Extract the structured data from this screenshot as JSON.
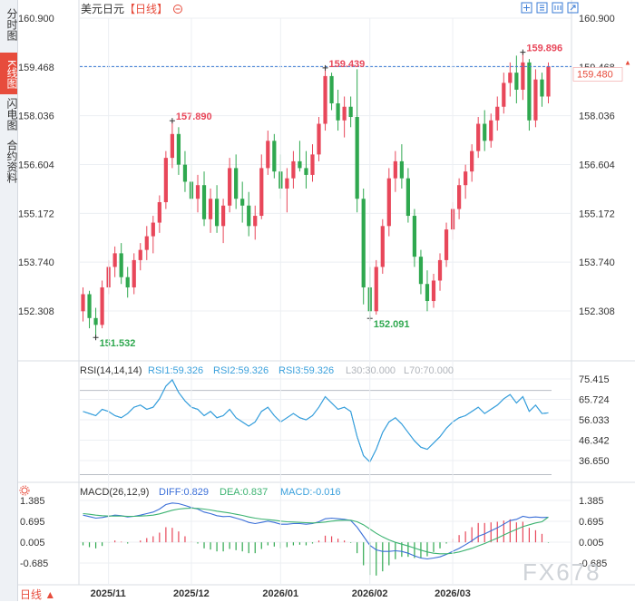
{
  "sidebar": {
    "tabs": [
      {
        "label": "分时图",
        "active": false
      },
      {
        "label": "K线图",
        "active": true
      },
      {
        "label": "闪电图",
        "active": false
      },
      {
        "label": "合约资料",
        "active": false
      }
    ]
  },
  "header": {
    "symbol": "美元日元",
    "period_tag": "【日线】",
    "icons": [
      "fullscreen-icon",
      "grid-icon",
      "calendar-icon",
      "export-icon"
    ]
  },
  "price_panel": {
    "right_ticks": [
      "160.900",
      "159.468",
      "158.036",
      "156.604",
      "155.172",
      "153.740",
      "152.308"
    ],
    "left_ticks": [
      "160.900",
      "159.468",
      "158.036",
      "156.604",
      "155.172",
      "153.740",
      "152.308"
    ],
    "current_price": "159.480",
    "annotations": [
      "157.890",
      "159.439",
      "159.896",
      "151.532",
      "152.091"
    ]
  },
  "rsi_panel": {
    "title": "RSI(14,14,14)",
    "rsi1": "RSI1:59.326",
    "rsi2": "RSI2:59.326",
    "rsi3": "RSI3:59.326",
    "l30": "L30:30.000",
    "l70": "L70:70.000",
    "ticks": [
      "75.415",
      "65.724",
      "56.033",
      "46.342",
      "36.650"
    ]
  },
  "macd_panel": {
    "title": "MACD(26,12,9)",
    "diff": "DIFF:0.829",
    "dea": "DEA:0.837",
    "macd": "MACD:-0.016",
    "ticks": [
      "1.385",
      "0.695",
      "0.005",
      "-0.685"
    ]
  },
  "x_axis": {
    "labels": [
      "2025/11",
      "2025/12",
      "2026/01",
      "2026/02",
      "2026/03"
    ]
  },
  "footer": {
    "period": "日线 ▲",
    "watermark": "FX678"
  },
  "colors": {
    "up": "#e8475a",
    "down": "#2fa84f",
    "rsi": "#3aa0dc",
    "macd_diff": "#3b6fd8",
    "macd_dea": "#3cb371",
    "accent": "#e74c3c",
    "grid": "#eceff3"
  },
  "chart_data": [
    {
      "type": "candlestick",
      "title": "美元日元【日线】",
      "ylim": [
        151.3,
        161.1
      ],
      "x": [
        "2025/11",
        "2025/12",
        "2026/01",
        "2026/02",
        "2026/03"
      ],
      "series": [
        {
          "values": [
            [
              152.3,
              153.0,
              152.0,
              152.8
            ],
            [
              152.8,
              152.9,
              151.8,
              152.1
            ],
            [
              152.1,
              152.4,
              151.53,
              151.9
            ],
            [
              151.9,
              153.2,
              151.8,
              153.0
            ],
            [
              153.0,
              153.8,
              152.8,
              153.6
            ],
            [
              153.6,
              154.2,
              153.3,
              154.0
            ],
            [
              154.0,
              154.3,
              153.1,
              153.3
            ],
            [
              153.3,
              153.6,
              152.7,
              153.0
            ],
            [
              153.0,
              154.0,
              152.8,
              153.8
            ],
            [
              153.8,
              154.3,
              153.5,
              154.1
            ],
            [
              154.1,
              154.8,
              153.8,
              154.5
            ],
            [
              154.5,
              155.1,
              154.0,
              154.9
            ],
            [
              154.9,
              155.7,
              154.6,
              155.5
            ],
            [
              155.5,
              157.0,
              155.3,
              156.8
            ],
            [
              156.8,
              157.89,
              156.5,
              157.5
            ],
            [
              157.5,
              157.7,
              156.3,
              156.6
            ],
            [
              156.6,
              157.0,
              155.8,
              156.1
            ],
            [
              156.1,
              156.6,
              155.3,
              155.6
            ],
            [
              155.6,
              156.3,
              155.2,
              156.0
            ],
            [
              156.0,
              156.4,
              154.8,
              155.0
            ],
            [
              155.0,
              155.9,
              154.6,
              155.6
            ],
            [
              155.6,
              156.0,
              154.6,
              154.8
            ],
            [
              154.8,
              155.6,
              154.3,
              155.4
            ],
            [
              155.4,
              156.8,
              155.2,
              156.5
            ],
            [
              156.5,
              156.9,
              155.3,
              155.6
            ],
            [
              155.6,
              156.1,
              154.9,
              155.4
            ],
            [
              155.4,
              155.8,
              154.5,
              154.8
            ],
            [
              154.8,
              155.4,
              154.4,
              155.1
            ],
            [
              155.1,
              156.9,
              155.0,
              156.5
            ],
            [
              156.5,
              157.6,
              156.3,
              157.3
            ],
            [
              157.3,
              157.5,
              156.2,
              156.4
            ],
            [
              156.4,
              156.9,
              155.6,
              155.9
            ],
            [
              155.9,
              156.5,
              155.2,
              156.2
            ],
            [
              156.2,
              157.0,
              155.9,
              156.7
            ],
            [
              156.7,
              157.3,
              156.4,
              156.5
            ],
            [
              156.5,
              157.0,
              155.9,
              156.3
            ],
            [
              156.3,
              157.2,
              156.1,
              156.9
            ],
            [
              156.9,
              158.0,
              156.7,
              157.8
            ],
            [
              157.8,
              159.44,
              157.6,
              159.2
            ],
            [
              159.2,
              159.3,
              158.2,
              158.4
            ],
            [
              158.4,
              158.8,
              157.6,
              157.9
            ],
            [
              157.9,
              158.6,
              157.4,
              158.3
            ],
            [
              158.3,
              158.6,
              157.7,
              158.0
            ],
            [
              158.0,
              159.4,
              155.2,
              155.6
            ],
            [
              155.6,
              155.9,
              152.5,
              153.0
            ],
            [
              153.0,
              153.6,
              152.09,
              152.3
            ],
            [
              152.3,
              153.8,
              152.2,
              153.6
            ],
            [
              153.6,
              155.0,
              153.4,
              154.8
            ],
            [
              154.8,
              156.5,
              154.5,
              156.2
            ],
            [
              156.2,
              157.0,
              155.8,
              156.7
            ],
            [
              156.7,
              157.2,
              155.9,
              156.2
            ],
            [
              156.2,
              156.5,
              154.9,
              155.1
            ],
            [
              155.1,
              155.3,
              153.6,
              153.9
            ],
            [
              153.9,
              154.1,
              152.8,
              153.1
            ],
            [
              153.1,
              153.5,
              152.3,
              152.6
            ],
            [
              152.6,
              153.4,
              152.4,
              153.2
            ],
            [
              153.2,
              154.0,
              152.9,
              153.8
            ],
            [
              153.8,
              154.9,
              153.6,
              154.7
            ],
            [
              154.7,
              155.5,
              154.4,
              155.3
            ],
            [
              155.3,
              156.2,
              155.0,
              156.0
            ],
            [
              156.0,
              156.6,
              155.6,
              156.4
            ],
            [
              156.4,
              157.2,
              156.1,
              157.0
            ],
            [
              157.0,
              158.0,
              156.8,
              157.8
            ],
            [
              157.8,
              158.2,
              157.0,
              157.3
            ],
            [
              157.3,
              158.1,
              157.1,
              157.9
            ],
            [
              157.9,
              158.6,
              157.6,
              158.3
            ],
            [
              158.3,
              159.3,
              158.1,
              159.0
            ],
            [
              159.0,
              159.6,
              158.6,
              159.3
            ],
            [
              159.3,
              159.8,
              158.4,
              158.8
            ],
            [
              158.8,
              159.9,
              158.5,
              159.6
            ],
            [
              159.6,
              159.7,
              157.6,
              157.9
            ],
            [
              157.9,
              159.4,
              157.7,
              159.1
            ],
            [
              159.1,
              159.3,
              158.3,
              158.6
            ],
            [
              158.6,
              159.6,
              158.4,
              159.48
            ]
          ]
        }
      ]
    },
    {
      "type": "line",
      "title": "RSI(14,14,14)",
      "ylim": [
        30,
        80
      ],
      "series": [
        {
          "name": "RSI1",
          "values": [
            60,
            59,
            58,
            61,
            60,
            58,
            57,
            59,
            62,
            63,
            61,
            62,
            66,
            72,
            75,
            69,
            65,
            62,
            61,
            58,
            60,
            57,
            58,
            61,
            57,
            55,
            53,
            55,
            60,
            62,
            58,
            55,
            57,
            59,
            57,
            56,
            58,
            62,
            67,
            64,
            61,
            62,
            60,
            48,
            39,
            36,
            42,
            50,
            55,
            57,
            54,
            50,
            46,
            43,
            42,
            45,
            48,
            52,
            55,
            57,
            58,
            60,
            62,
            59,
            61,
            63,
            66,
            68,
            64,
            67,
            60,
            63,
            59,
            59.3
          ]
        },
        {
          "name": "RSI2",
          "values": [
            60,
            59,
            58,
            61,
            60,
            58,
            57,
            59,
            62,
            63,
            61,
            62,
            66,
            72,
            75,
            69,
            65,
            62,
            61,
            58,
            60,
            57,
            58,
            61,
            57,
            55,
            53,
            55,
            60,
            62,
            58,
            55,
            57,
            59,
            57,
            56,
            58,
            62,
            67,
            64,
            61,
            62,
            60,
            48,
            39,
            36,
            42,
            50,
            55,
            57,
            54,
            50,
            46,
            43,
            42,
            45,
            48,
            52,
            55,
            57,
            58,
            60,
            62,
            59,
            61,
            63,
            66,
            68,
            64,
            67,
            60,
            63,
            59,
            59.3
          ]
        },
        {
          "name": "RSI3",
          "values": [
            60,
            59,
            58,
            61,
            60,
            58,
            57,
            59,
            62,
            63,
            61,
            62,
            66,
            72,
            75,
            69,
            65,
            62,
            61,
            58,
            60,
            57,
            58,
            61,
            57,
            55,
            53,
            55,
            60,
            62,
            58,
            55,
            57,
            59,
            57,
            56,
            58,
            62,
            67,
            64,
            61,
            62,
            60,
            48,
            39,
            36,
            42,
            50,
            55,
            57,
            54,
            50,
            46,
            43,
            42,
            45,
            48,
            52,
            55,
            57,
            58,
            60,
            62,
            59,
            61,
            63,
            66,
            68,
            64,
            67,
            60,
            63,
            59,
            59.3
          ]
        }
      ],
      "reference_lines": [
        30,
        70
      ]
    },
    {
      "type": "line",
      "title": "MACD(26,12,9)",
      "ylim": [
        -1.0,
        1.5
      ],
      "series": [
        {
          "name": "DIFF",
          "values": [
            0.9,
            0.85,
            0.8,
            0.82,
            0.86,
            0.9,
            0.88,
            0.84,
            0.86,
            0.9,
            0.95,
            1.0,
            1.1,
            1.25,
            1.3,
            1.28,
            1.22,
            1.15,
            1.1,
            1.0,
            0.95,
            0.88,
            0.85,
            0.86,
            0.8,
            0.74,
            0.66,
            0.62,
            0.66,
            0.7,
            0.66,
            0.6,
            0.6,
            0.62,
            0.62,
            0.6,
            0.62,
            0.68,
            0.78,
            0.8,
            0.78,
            0.76,
            0.72,
            0.5,
            0.2,
            -0.1,
            -0.25,
            -0.3,
            -0.3,
            -0.28,
            -0.3,
            -0.36,
            -0.45,
            -0.52,
            -0.55,
            -0.52,
            -0.48,
            -0.4,
            -0.3,
            -0.2,
            -0.08,
            0.05,
            0.2,
            0.28,
            0.38,
            0.48,
            0.6,
            0.72,
            0.76,
            0.86,
            0.82,
            0.84,
            0.82,
            0.829
          ]
        },
        {
          "name": "DEA",
          "values": [
            0.95,
            0.93,
            0.9,
            0.88,
            0.87,
            0.87,
            0.87,
            0.86,
            0.86,
            0.87,
            0.88,
            0.9,
            0.94,
            1.0,
            1.06,
            1.1,
            1.12,
            1.13,
            1.12,
            1.1,
            1.07,
            1.03,
            1.0,
            0.97,
            0.93,
            0.89,
            0.84,
            0.8,
            0.77,
            0.75,
            0.73,
            0.7,
            0.68,
            0.67,
            0.66,
            0.65,
            0.64,
            0.65,
            0.67,
            0.7,
            0.72,
            0.73,
            0.73,
            0.68,
            0.58,
            0.44,
            0.3,
            0.18,
            0.08,
            0.0,
            -0.06,
            -0.12,
            -0.19,
            -0.26,
            -0.32,
            -0.36,
            -0.38,
            -0.38,
            -0.36,
            -0.32,
            -0.26,
            -0.2,
            -0.12,
            -0.04,
            0.05,
            0.14,
            0.24,
            0.34,
            0.43,
            0.52,
            0.58,
            0.64,
            0.68,
            0.837
          ]
        },
        {
          "name": "MACD",
          "values": [
            -0.1,
            -0.16,
            -0.2,
            -0.12,
            -0.02,
            0.06,
            0.02,
            -0.04,
            0.0,
            0.06,
            0.14,
            0.2,
            0.32,
            0.5,
            0.48,
            0.36,
            0.2,
            0.04,
            -0.04,
            -0.2,
            -0.24,
            -0.3,
            -0.3,
            -0.22,
            -0.26,
            -0.3,
            -0.36,
            -0.36,
            -0.22,
            -0.1,
            -0.14,
            -0.2,
            -0.16,
            -0.1,
            -0.08,
            -0.1,
            -0.04,
            0.06,
            0.22,
            0.2,
            0.12,
            0.06,
            -0.02,
            -0.36,
            -0.76,
            -1.08,
            -1.1,
            -0.96,
            -0.76,
            -0.56,
            -0.48,
            -0.48,
            -0.52,
            -0.52,
            -0.46,
            -0.32,
            -0.2,
            -0.04,
            0.12,
            0.24,
            0.36,
            0.5,
            0.64,
            0.64,
            0.66,
            0.68,
            0.72,
            0.76,
            0.66,
            0.68,
            0.48,
            0.4,
            0.28,
            -0.016
          ]
        }
      ]
    }
  ]
}
